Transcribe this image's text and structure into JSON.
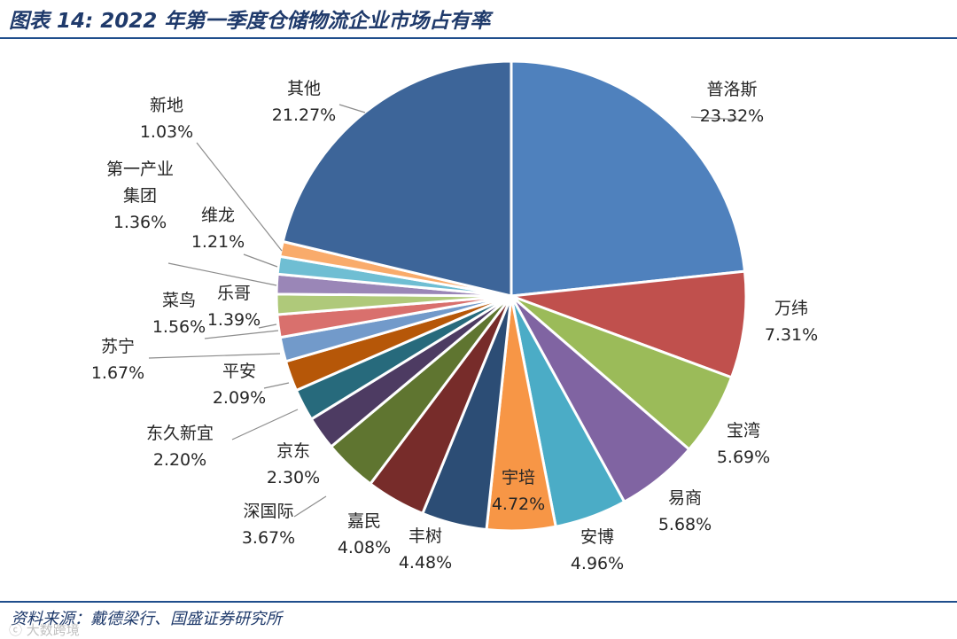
{
  "header": {
    "title": "图表 14: 2022 年第一季度仓储物流企业市场占有率"
  },
  "footer": {
    "source": "资料来源：戴德梁行、国盛证券研究所",
    "watermark": "ⓒ 大数跨境"
  },
  "chart_data": {
    "type": "pie",
    "title": "2022 年第一季度仓储物流企业市场占有率",
    "unit": "%",
    "slices": [
      {
        "name": "普洛斯",
        "value": 23.32,
        "label": "23.32%",
        "color": "#4f81bd"
      },
      {
        "name": "万纬",
        "value": 7.31,
        "label": "7.31%",
        "color": "#c0504d"
      },
      {
        "name": "宝湾",
        "value": 5.69,
        "label": "5.69%",
        "color": "#9bbb59"
      },
      {
        "name": "易商",
        "value": 5.68,
        "label": "5.68%",
        "color": "#8064a2"
      },
      {
        "name": "安博",
        "value": 4.96,
        "label": "4.96%",
        "color": "#4bacc6"
      },
      {
        "name": "宇培",
        "value": 4.72,
        "label": "4.72%",
        "color": "#f79646"
      },
      {
        "name": "丰树",
        "value": 4.48,
        "label": "4.48%",
        "color": "#2c4d75"
      },
      {
        "name": "嘉民",
        "value": 4.08,
        "label": "4.08%",
        "color": "#772c2a"
      },
      {
        "name": "深国际",
        "value": 3.67,
        "label": "3.67%",
        "color": "#5f7530"
      },
      {
        "name": "京东",
        "value": 2.3,
        "label": "2.30%",
        "color": "#4d3b62"
      },
      {
        "name": "东久新宜",
        "value": 2.2,
        "label": "2.20%",
        "color": "#276a7c"
      },
      {
        "name": "平安",
        "value": 2.09,
        "label": "2.09%",
        "color": "#b65708"
      },
      {
        "name": "苏宁",
        "value": 1.67,
        "label": "1.67%",
        "color": "#729aca"
      },
      {
        "name": "菜鸟",
        "value": 1.56,
        "label": "1.56%",
        "color": "#d9706d"
      },
      {
        "name": "乐哥",
        "value": 1.39,
        "label": "1.39%",
        "color": "#afc97a"
      },
      {
        "name": "第一产业集团",
        "value": 1.36,
        "label": "1.36%",
        "color": "#9a86b7"
      },
      {
        "name": "维龙",
        "value": 1.21,
        "label": "1.21%",
        "color": "#6fbed3"
      },
      {
        "name": "新地",
        "value": 1.03,
        "label": "1.03%",
        "color": "#f9ab6b"
      },
      {
        "name": "其他",
        "value": 21.27,
        "label": "21.27%",
        "color": "#3d6599"
      }
    ]
  }
}
